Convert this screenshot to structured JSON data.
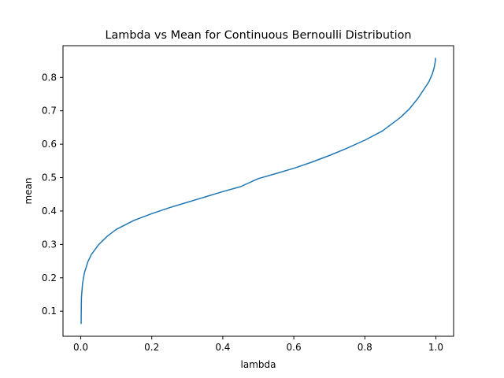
{
  "chart_data": {
    "type": "line",
    "title": "Lambda vs Mean for Continuous Bernoulli Distribution",
    "xlabel": "lambda",
    "ylabel": "mean",
    "xlim": [
      -0.05,
      1.05
    ],
    "ylim": [
      0.025,
      0.895
    ],
    "grid": false,
    "legend": "none",
    "xticks": [
      {
        "value": 0.0,
        "label": "0.0"
      },
      {
        "value": 0.2,
        "label": "0.2"
      },
      {
        "value": 0.4,
        "label": "0.4"
      },
      {
        "value": 0.6,
        "label": "0.6"
      },
      {
        "value": 0.8,
        "label": "0.8"
      },
      {
        "value": 1.0,
        "label": "1.0"
      }
    ],
    "yticks": [
      {
        "value": 0.1,
        "label": "0.1"
      },
      {
        "value": 0.2,
        "label": "0.2"
      },
      {
        "value": 0.3,
        "label": "0.3"
      },
      {
        "value": 0.4,
        "label": "0.4"
      },
      {
        "value": 0.5,
        "label": "0.5"
      },
      {
        "value": 0.6,
        "label": "0.6"
      },
      {
        "value": 0.7,
        "label": "0.7"
      },
      {
        "value": 0.8,
        "label": "0.8"
      }
    ],
    "series": [
      {
        "color": "#1f77b4",
        "x": [
          0.001,
          0.002,
          0.005,
          0.01,
          0.02,
          0.03,
          0.05,
          0.075,
          0.1,
          0.15,
          0.2,
          0.25,
          0.3,
          0.35,
          0.4,
          0.45,
          0.5,
          0.55,
          0.6,
          0.65,
          0.7,
          0.75,
          0.8,
          0.85,
          0.9,
          0.925,
          0.95,
          0.97,
          0.98,
          0.99,
          0.995,
          0.998,
          0.999
        ],
        "y": [
          0.063,
          0.14,
          0.182,
          0.214,
          0.248,
          0.27,
          0.299,
          0.325,
          0.345,
          0.372,
          0.392,
          0.41,
          0.426,
          0.442,
          0.458,
          0.473,
          0.497,
          0.512,
          0.528,
          0.546,
          0.566,
          0.588,
          0.612,
          0.64,
          0.68,
          0.705,
          0.738,
          0.77,
          0.786,
          0.81,
          0.828,
          0.846,
          0.857
        ]
      }
    ]
  }
}
